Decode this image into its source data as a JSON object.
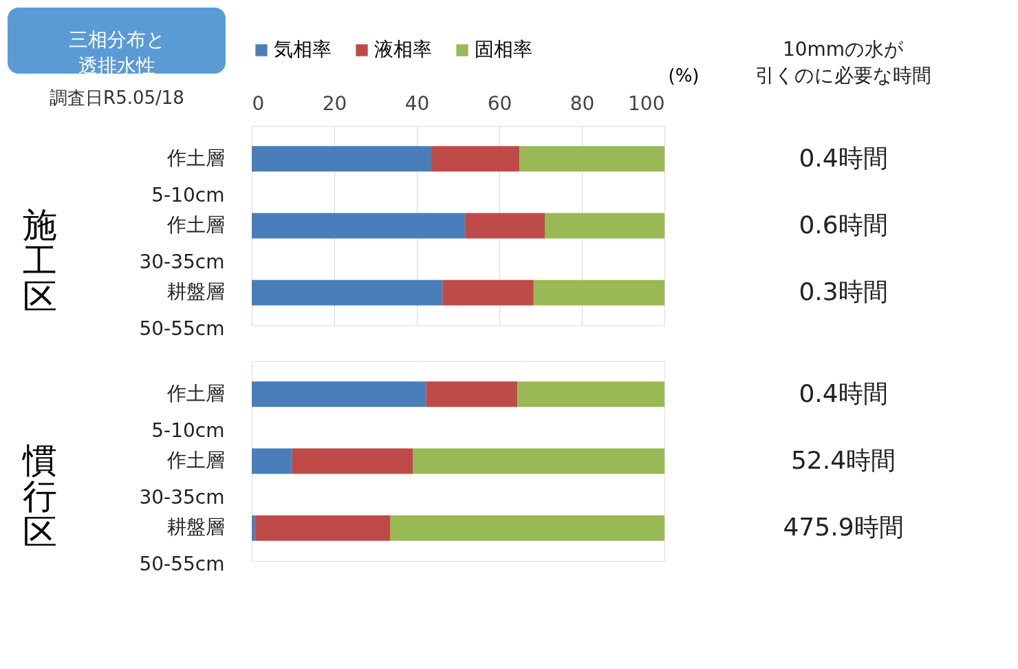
{
  "chart_data": [
    {
      "type": "bar",
      "orientation": "horizontal",
      "stacked": true,
      "title": "三相分布と透排水性",
      "subtitle": "調査日R5.05/18",
      "xlabel": "(%)",
      "ylabel": "施工区",
      "categories": [
        "作土層\n5-10cm",
        "作土層\n30-35cm",
        "耕盤層\n50-55cm"
      ],
      "series": [
        {
          "name": "気相率",
          "color": "#4a7ebb",
          "values": [
            43.5,
            51.7,
            46.2
          ]
        },
        {
          "name": "液相率",
          "color": "#be4b48",
          "values": [
            21.4,
            19.3,
            22.1
          ]
        },
        {
          "name": "固相率",
          "color": "#98b954",
          "values": [
            35.1,
            29.0,
            31.7
          ]
        }
      ],
      "xlim": [
        0,
        100
      ],
      "xticks": [
        0,
        20,
        40,
        60,
        80,
        100
      ],
      "grid": "x",
      "legend": "top",
      "annotations": [
        "10mmの水が",
        "引くのに必要な時間",
        "0.4時間",
        "0.6時間",
        "0.3時間"
      ]
    },
    {
      "type": "bar",
      "orientation": "horizontal",
      "stacked": true,
      "ylabel": "慣行区",
      "categories": [
        "作土層\n5-10cm",
        "作土層\n30-35cm",
        "耕盤層\n50-55cm"
      ],
      "series": [
        {
          "color": "#4a7ebb",
          "values": [
            42.2,
            9.7,
            0.8
          ]
        },
        {
          "color": "#be4b48",
          "values": [
            22.2,
            29.4,
            32.7
          ]
        },
        {
          "color": "#98b954",
          "values": [
            35.6,
            60.9,
            66.5
          ]
        }
      ],
      "xlim": [
        0,
        100
      ],
      "tick_labels": "y",
      "grid": "x",
      "annotations": [
        "0.4時間",
        "52.4時間",
        "475.9時間"
      ]
    }
  ]
}
